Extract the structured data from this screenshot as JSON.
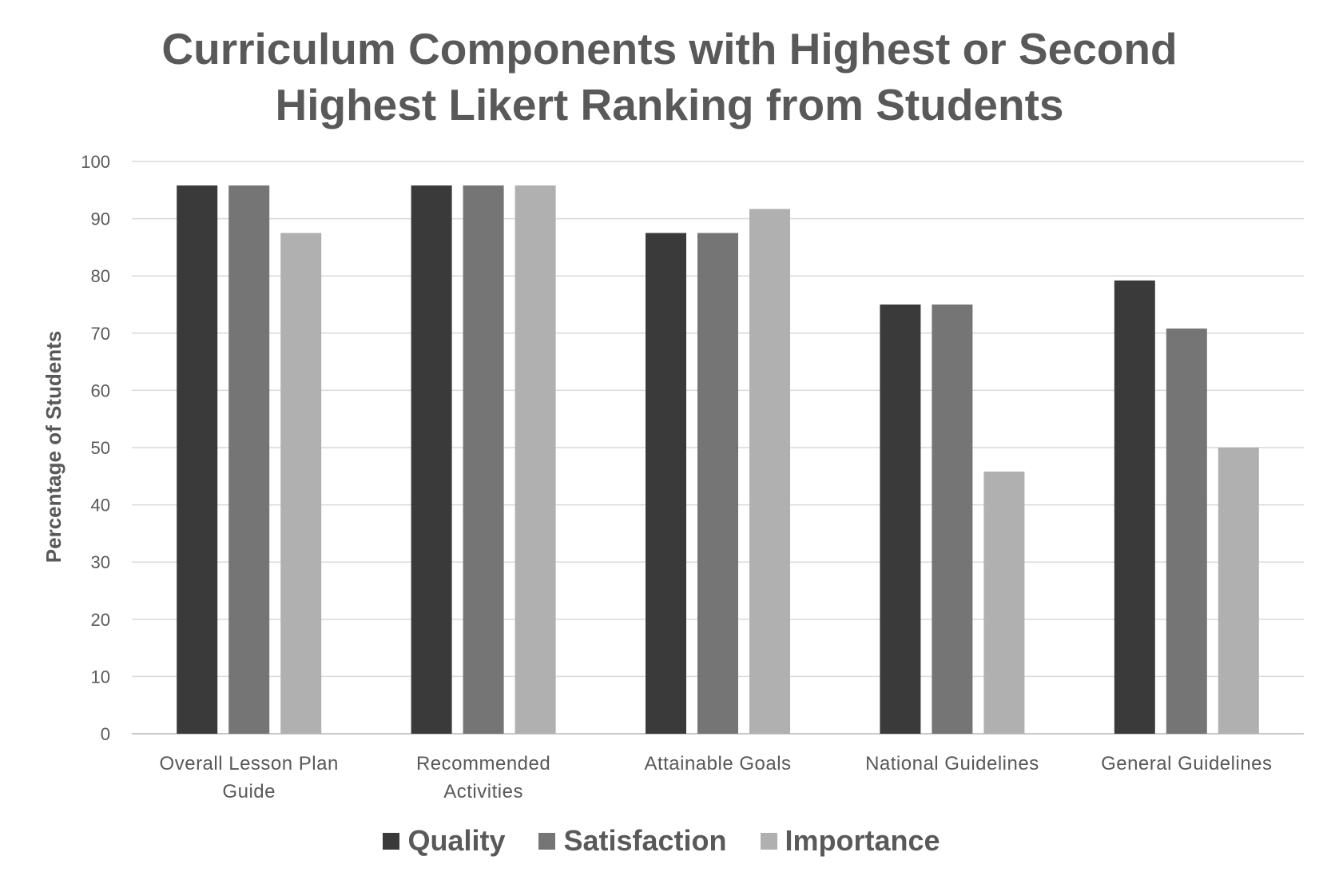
{
  "chart_data": {
    "type": "bar",
    "title_lines": [
      "Curriculum Components with Highest or Second",
      "Highest Likert Ranking from Students"
    ],
    "xlabel": "",
    "ylabel": "Percentage of Students",
    "ylim": [
      0,
      100
    ],
    "yticks": [
      0,
      10,
      20,
      30,
      40,
      50,
      60,
      70,
      80,
      90,
      100
    ],
    "grid": true,
    "legend_position": "bottom",
    "categories": [
      [
        "Overall Lesson Plan",
        "Guide"
      ],
      [
        "Recommended",
        "Activities"
      ],
      [
        "Attainable Goals"
      ],
      [
        "National Guidelines"
      ],
      [
        "General Guidelines"
      ]
    ],
    "series": [
      {
        "name": "Quality",
        "color": "#3a3a3a",
        "values": [
          95.8,
          95.8,
          87.5,
          75.0,
          79.2
        ]
      },
      {
        "name": "Satisfaction",
        "color": "#757575",
        "values": [
          95.8,
          95.8,
          87.5,
          75.0,
          70.8
        ]
      },
      {
        "name": "Importance",
        "color": "#b0b0b0",
        "values": [
          87.5,
          95.8,
          91.7,
          45.8,
          50.0
        ]
      }
    ]
  }
}
